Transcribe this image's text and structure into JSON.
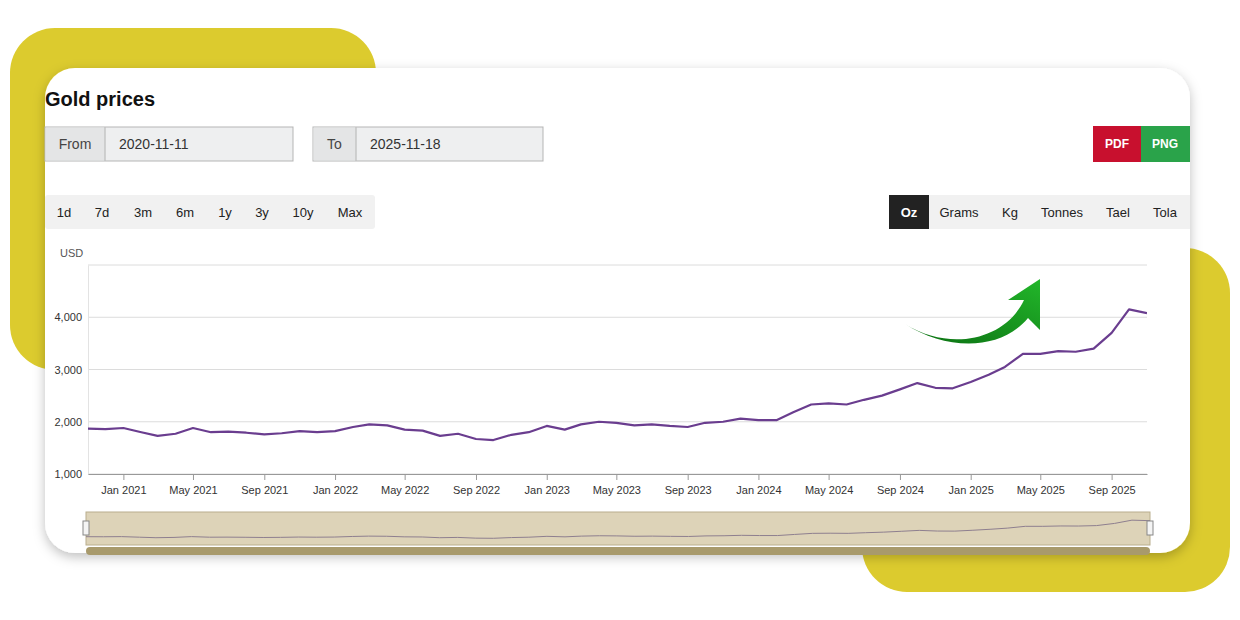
{
  "page": {
    "title": "Gold prices",
    "from_label": "From",
    "from_value": "2020-11-11",
    "to_label": "To",
    "to_value": "2025-11-18",
    "exports": [
      "PDF",
      "PNG"
    ],
    "ranges": [
      "1d",
      "7d",
      "3m",
      "6m",
      "1y",
      "3y",
      "10y",
      "Max"
    ],
    "units": [
      "Oz",
      "Grams",
      "Kg",
      "Tonnes",
      "Tael",
      "Tola"
    ],
    "selected_unit": "Oz"
  },
  "chart_data": {
    "type": "line",
    "y_label": "USD",
    "color": "#6a3d8f",
    "grid": true,
    "x": [
      "2020-11",
      "2020-12",
      "2021-01",
      "2021-02",
      "2021-03",
      "2021-04",
      "2021-05",
      "2021-06",
      "2021-07",
      "2021-08",
      "2021-09",
      "2021-10",
      "2021-11",
      "2021-12",
      "2022-01",
      "2022-02",
      "2022-03",
      "2022-04",
      "2022-05",
      "2022-06",
      "2022-07",
      "2022-08",
      "2022-09",
      "2022-10",
      "2022-11",
      "2022-12",
      "2023-01",
      "2023-02",
      "2023-03",
      "2023-04",
      "2023-05",
      "2023-06",
      "2023-07",
      "2023-08",
      "2023-09",
      "2023-10",
      "2023-11",
      "2023-12",
      "2024-01",
      "2024-02",
      "2024-03",
      "2024-04",
      "2024-05",
      "2024-06",
      "2024-07",
      "2024-08",
      "2024-09",
      "2024-10",
      "2024-11",
      "2024-12",
      "2025-01",
      "2025-02",
      "2025-03",
      "2025-04",
      "2025-05",
      "2025-06",
      "2025-07",
      "2025-08",
      "2025-09",
      "2025-10",
      "2025-11"
    ],
    "values": [
      1870,
      1860,
      1880,
      1800,
      1730,
      1770,
      1880,
      1800,
      1810,
      1790,
      1760,
      1780,
      1820,
      1800,
      1820,
      1900,
      1950,
      1930,
      1850,
      1830,
      1730,
      1770,
      1670,
      1650,
      1750,
      1800,
      1920,
      1850,
      1950,
      2000,
      1980,
      1930,
      1950,
      1920,
      1900,
      1980,
      2000,
      2060,
      2030,
      2030,
      2180,
      2330,
      2350,
      2330,
      2420,
      2500,
      2620,
      2740,
      2650,
      2640,
      2760,
      2900,
      3050,
      3300,
      3300,
      3350,
      3340,
      3400,
      3700,
      4150,
      4080
    ],
    "xlim": [
      "2020-11",
      "2025-11"
    ],
    "xticks": [
      {
        "value": "2021-01",
        "label": "Jan 2021"
      },
      {
        "value": "2021-05",
        "label": "May 2021"
      },
      {
        "value": "2021-09",
        "label": "Sep 2021"
      },
      {
        "value": "2022-01",
        "label": "Jan 2022"
      },
      {
        "value": "2022-05",
        "label": "May 2022"
      },
      {
        "value": "2022-09",
        "label": "Sep 2022"
      },
      {
        "value": "2023-01",
        "label": "Jan 2023"
      },
      {
        "value": "2023-05",
        "label": "May 2023"
      },
      {
        "value": "2023-09",
        "label": "Sep 2023"
      },
      {
        "value": "2024-01",
        "label": "Jan 2024"
      },
      {
        "value": "2024-05",
        "label": "May 2024"
      },
      {
        "value": "2024-09",
        "label": "Sep 2024"
      },
      {
        "value": "2025-01",
        "label": "Jan 2025"
      },
      {
        "value": "2025-05",
        "label": "May 2025"
      },
      {
        "value": "2025-09",
        "label": "Sep 2025"
      }
    ],
    "ylim": [
      1000,
      5000
    ],
    "yticks": [
      {
        "value": 1000,
        "label": "1,000"
      },
      {
        "value": 2000,
        "label": "2,000"
      },
      {
        "value": 3000,
        "label": "3,000"
      },
      {
        "value": 4000,
        "label": "4,000"
      }
    ]
  }
}
